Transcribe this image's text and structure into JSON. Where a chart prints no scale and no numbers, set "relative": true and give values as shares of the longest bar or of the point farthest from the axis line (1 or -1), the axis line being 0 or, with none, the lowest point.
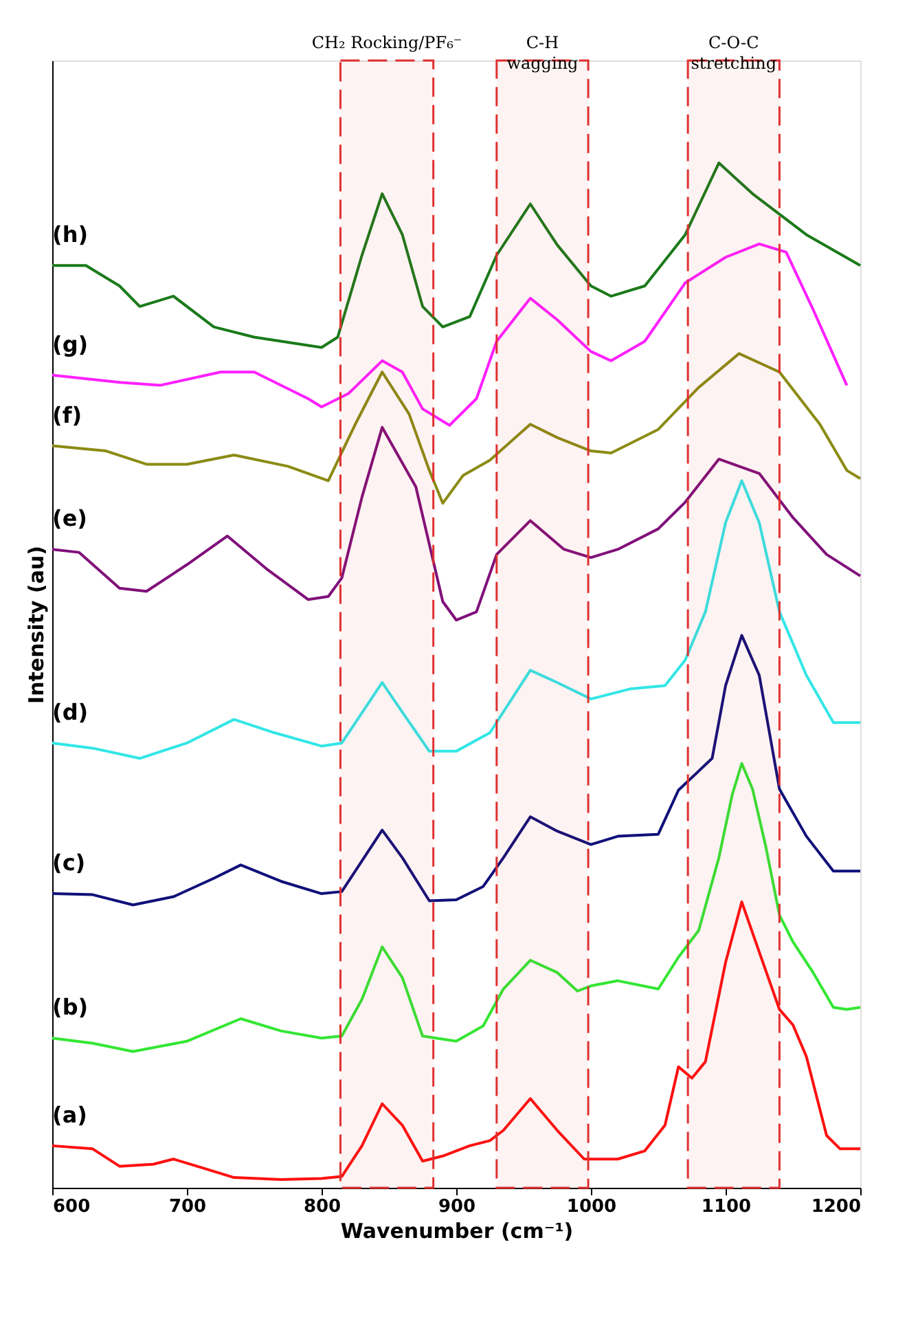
{
  "chart_data": {
    "type": "line",
    "relative": true,
    "xlabel": "Wavenumber (cm⁻¹)",
    "ylabel": "Intensity (au)",
    "xlim": [
      600,
      1200
    ],
    "xticks": [
      600,
      700,
      800,
      900,
      1000,
      1100,
      1200
    ],
    "grid": false,
    "legend": false,
    "marker": "none",
    "line_style": "solid",
    "bands": [
      {
        "axis": "x",
        "from": 814,
        "to": 883,
        "label": "CH₂ Rocking/PF₆⁻",
        "color": "#e03030"
      },
      {
        "axis": "x",
        "from": 930,
        "to": 998,
        "label": "C-H\nwagging",
        "color": "#e03030"
      },
      {
        "axis": "x",
        "from": 1072,
        "to": 1140,
        "label": "C-O-C\nstretching",
        "color": "#e03030"
      }
    ],
    "series": [
      {
        "name": "(a)",
        "color": "#ff1010",
        "x": [
          600,
          630,
          650,
          675,
          690,
          710,
          735,
          770,
          800,
          815,
          830,
          845,
          860,
          875,
          890,
          910,
          925,
          935,
          955,
          975,
          995,
          1020,
          1040,
          1055,
          1065,
          1075,
          1085,
          1100,
          1112,
          1125,
          1140,
          1150,
          1160,
          1175,
          1185,
          1200
        ],
        "values": [
          0.041,
          0.038,
          0.021,
          0.023,
          0.028,
          0.02,
          0.01,
          0.008,
          0.009,
          0.011,
          0.041,
          0.082,
          0.061,
          0.026,
          0.031,
          0.041,
          0.046,
          0.056,
          0.087,
          0.056,
          0.028,
          0.028,
          0.036,
          0.061,
          0.118,
          0.107,
          0.123,
          0.22,
          0.279,
          0.23,
          0.174,
          0.159,
          0.128,
          0.051,
          0.038,
          0.038
        ]
      },
      {
        "name": "(b)",
        "color": "#33e633",
        "x": [
          600,
          630,
          660,
          700,
          740,
          770,
          800,
          815,
          830,
          845,
          860,
          875,
          900,
          920,
          935,
          955,
          975,
          990,
          1000,
          1020,
          1050,
          1065,
          1080,
          1095,
          1105,
          1112,
          1120,
          1130,
          1140,
          1150,
          1165,
          1180,
          1190,
          1200
        ],
        "values": [
          0.146,
          0.141,
          0.133,
          0.143,
          0.165,
          0.153,
          0.146,
          0.148,
          0.184,
          0.235,
          0.205,
          0.148,
          0.143,
          0.158,
          0.194,
          0.222,
          0.21,
          0.192,
          0.197,
          0.202,
          0.194,
          0.225,
          0.251,
          0.322,
          0.384,
          0.414,
          0.389,
          0.332,
          0.266,
          0.24,
          0.21,
          0.176,
          0.174,
          0.176
        ]
      },
      {
        "name": "(c)",
        "color": "#10107a",
        "x": [
          600,
          630,
          660,
          690,
          720,
          740,
          770,
          800,
          815,
          845,
          860,
          880,
          900,
          920,
          935,
          955,
          975,
          1000,
          1020,
          1050,
          1065,
          1090,
          1100,
          1112,
          1125,
          1140,
          1160,
          1180,
          1200
        ],
        "values": [
          0.287,
          0.286,
          0.276,
          0.284,
          0.302,
          0.315,
          0.299,
          0.287,
          0.289,
          0.349,
          0.322,
          0.28,
          0.281,
          0.294,
          0.322,
          0.362,
          0.348,
          0.335,
          0.343,
          0.345,
          0.388,
          0.419,
          0.49,
          0.539,
          0.5,
          0.389,
          0.343,
          0.309,
          0.309
        ]
      },
      {
        "name": "(d)",
        "color": "#33e6e6",
        "x": [
          600,
          630,
          665,
          700,
          735,
          765,
          800,
          815,
          845,
          860,
          880,
          900,
          925,
          955,
          975,
          1000,
          1030,
          1055,
          1070,
          1085,
          1100,
          1112,
          1125,
          1140,
          1160,
          1180,
          1200
        ],
        "values": [
          0.434,
          0.429,
          0.419,
          0.434,
          0.457,
          0.444,
          0.431,
          0.434,
          0.493,
          0.464,
          0.426,
          0.426,
          0.444,
          0.505,
          0.493,
          0.477,
          0.487,
          0.49,
          0.515,
          0.562,
          0.649,
          0.69,
          0.649,
          0.562,
          0.5,
          0.454,
          0.454
        ]
      },
      {
        "name": "(e)",
        "color": "#80107a",
        "x": [
          600,
          620,
          650,
          670,
          700,
          730,
          760,
          790,
          805,
          815,
          830,
          845,
          870,
          890,
          900,
          915,
          930,
          955,
          980,
          1000,
          1020,
          1050,
          1070,
          1095,
          1125,
          1150,
          1175,
          1200
        ],
        "values": [
          0.623,
          0.62,
          0.585,
          0.582,
          0.608,
          0.636,
          0.603,
          0.574,
          0.577,
          0.595,
          0.674,
          0.742,
          0.684,
          0.572,
          0.554,
          0.562,
          0.618,
          0.651,
          0.623,
          0.615,
          0.623,
          0.643,
          0.669,
          0.711,
          0.697,
          0.654,
          0.618,
          0.597
        ]
      },
      {
        "name": "(f)",
        "color": "#8b8b14",
        "x": [
          600,
          640,
          670,
          700,
          735,
          775,
          805,
          825,
          845,
          865,
          880,
          890,
          905,
          925,
          955,
          975,
          1000,
          1015,
          1050,
          1080,
          1110,
          1140,
          1170,
          1190,
          1200
        ],
        "values": [
          0.724,
          0.719,
          0.706,
          0.706,
          0.715,
          0.704,
          0.69,
          0.745,
          0.796,
          0.755,
          0.7,
          0.668,
          0.695,
          0.71,
          0.745,
          0.732,
          0.719,
          0.717,
          0.74,
          0.781,
          0.814,
          0.796,
          0.745,
          0.7,
          0.692
        ]
      },
      {
        "name": "(g)",
        "color": "#ff20ff",
        "x": [
          600,
          650,
          680,
          725,
          750,
          790,
          800,
          820,
          845,
          860,
          875,
          895,
          915,
          930,
          955,
          975,
          1000,
          1015,
          1040,
          1070,
          1100,
          1125,
          1145,
          1165,
          1190
        ],
        "values": [
          0.793,
          0.786,
          0.783,
          0.796,
          0.796,
          0.77,
          0.762,
          0.775,
          0.807,
          0.796,
          0.76,
          0.744,
          0.77,
          0.826,
          0.868,
          0.847,
          0.816,
          0.807,
          0.826,
          0.883,
          0.908,
          0.921,
          0.913,
          0.857,
          0.783
        ]
      },
      {
        "name": "(h)",
        "color": "#1a7a1a",
        "x": [
          600,
          625,
          650,
          665,
          690,
          720,
          750,
          800,
          812,
          830,
          845,
          860,
          875,
          890,
          910,
          930,
          955,
          975,
          1000,
          1015,
          1040,
          1070,
          1095,
          1120,
          1140,
          1160,
          1200
        ],
        "values": [
          0.9,
          0.9,
          0.88,
          0.86,
          0.87,
          0.84,
          0.83,
          0.82,
          0.83,
          0.91,
          0.97,
          0.93,
          0.86,
          0.84,
          0.85,
          0.91,
          0.96,
          0.92,
          0.88,
          0.87,
          0.88,
          0.93,
          1.0,
          0.97,
          0.95,
          0.93,
          0.9
        ]
      }
    ]
  }
}
